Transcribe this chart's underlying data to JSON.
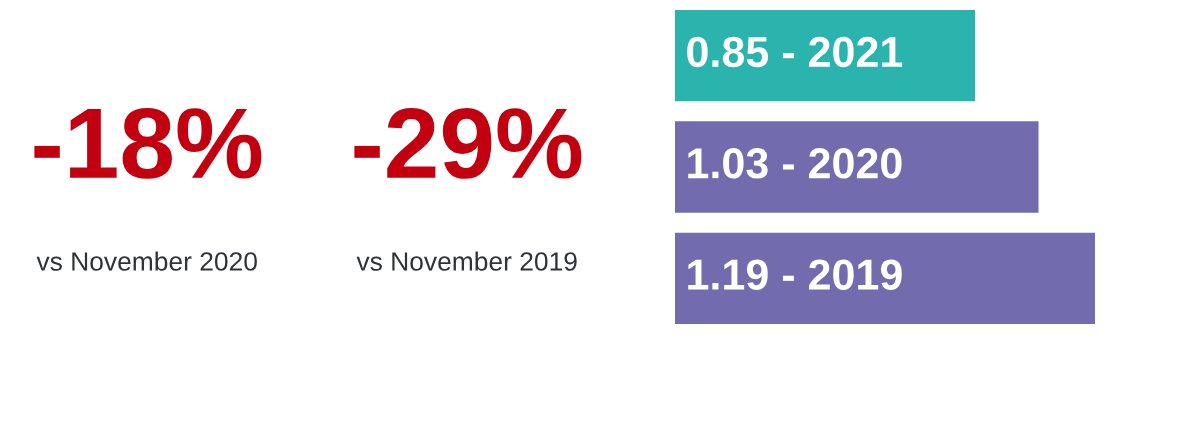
{
  "chart_data": [
    {
      "type": "other",
      "color": "#c3000f",
      "annotations": [
        "-18%",
        "vs November 2020",
        "-29%",
        "vs November 2019"
      ]
    },
    {
      "type": "bar",
      "orientation": "horizontal",
      "categories": [
        null,
        null,
        null
      ],
      "values": [
        0.85,
        1.03,
        1.19
      ],
      "colors": [
        "#2bb3ad",
        "#726caf",
        "#726caf"
      ],
      "value_labels": [
        "0.85 - 2021",
        "1.03 - 2020",
        "1.19 - 2019"
      ]
    }
  ]
}
